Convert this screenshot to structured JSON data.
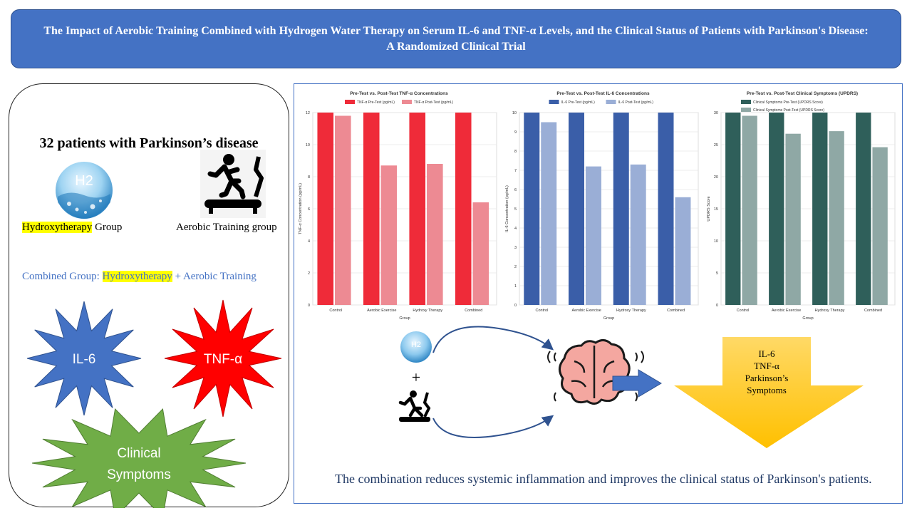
{
  "title": "The Impact of Aerobic Training Combined with Hydrogen Water Therapy on Serum IL-6 and TNF-α Levels, and the Clinical Status of Patients with Parkinson's Disease: A Randomized Clinical Trial",
  "left": {
    "patients": "32 patients with Parkinson’s disease",
    "h2_label": "H2",
    "hydroxy_group_hl": "Hydroxytherapy",
    "hydroxy_group_rest": " Group",
    "aerobic_group": "Aerobic Training group",
    "combined_prefix": "Combined Group: ",
    "combined_hl": "Hydroxytherapy",
    "combined_rest": " + Aerobic Training",
    "il6": "IL-6",
    "tnf": "TNF-α",
    "clinical_line1": "Clinical",
    "clinical_line2": "Symptoms",
    "colors": {
      "il6_star": "#4472c4",
      "tnf_star": "#ff0000",
      "clinical_star": "#70ad47"
    }
  },
  "flow": {
    "h2_label": "H2",
    "plus": "+",
    "outcome_lines": [
      "IL-6",
      "TNF-α",
      "Parkinson’s",
      "Symptoms"
    ],
    "arrow_color": "#4472c4",
    "outcome_color": "#ffd700"
  },
  "conclusion": "The combination reduces systemic inflammation and improves the clinical status of Parkinson's patients.",
  "chart_data": [
    {
      "type": "bar",
      "title": "Pre-Test vs. Post-Test TNF-α Concentrations",
      "categories": [
        "Control",
        "Aerobic Exercise",
        "Hydroxy Therapy",
        "Combined"
      ],
      "xlabel": "Group",
      "ylabel": "TNF-α Concentration (pg/mL)",
      "ylim": [
        0,
        12
      ],
      "yticks": [
        0,
        2,
        4,
        6,
        8,
        10,
        12
      ],
      "series": [
        {
          "name": "TNF-α Pre-Test (pg/mL)",
          "values": [
            12.0,
            12.0,
            12.0,
            12.0
          ],
          "color": "#ef2b39"
        },
        {
          "name": "TNF-α Post-Test (pg/mL)",
          "values": [
            11.8,
            8.7,
            8.8,
            6.4
          ],
          "color": "#ed8a93"
        }
      ],
      "legend": "top-center",
      "grid": true
    },
    {
      "type": "bar",
      "title": "Pre-Test vs. Post-Test IL-6 Concentrations",
      "categories": [
        "Control",
        "Aerobic Exercise",
        "Hydroxy Therapy",
        "Combined"
      ],
      "xlabel": "Group",
      "ylabel": "IL-6 Concentration (pg/mL)",
      "ylim": [
        0,
        10
      ],
      "yticks": [
        0,
        1,
        2,
        3,
        4,
        5,
        6,
        7,
        8,
        9,
        10
      ],
      "series": [
        {
          "name": "IL-6 Pre-Test (pg/mL)",
          "values": [
            10.0,
            10.0,
            10.0,
            10.0
          ],
          "color": "#3a5ea8"
        },
        {
          "name": "IL-6 Post-Test (pg/mL)",
          "values": [
            9.5,
            7.2,
            7.3,
            5.6
          ],
          "color": "#9aaed6"
        }
      ],
      "legend": "top-center",
      "grid": true
    },
    {
      "type": "bar",
      "title": "Pre-Test vs. Post-Test Clinical Symptoms (UPDRS)",
      "categories": [
        "Control",
        "Aerobic Exercise",
        "Hydroxy Therapy",
        "Combined"
      ],
      "xlabel": "Group",
      "ylabel": "UPDRS Score",
      "ylim": [
        0,
        30
      ],
      "yticks": [
        0,
        5,
        10,
        15,
        20,
        25,
        30
      ],
      "series": [
        {
          "name": "Clinical Symptoms Pre-Test (UPDRS Score)",
          "values": [
            30.0,
            30.0,
            30.0,
            30.0
          ],
          "color": "#2f5f5a"
        },
        {
          "name": "Clinical Symptoms Post-Test (UPDRS Score)",
          "values": [
            29.5,
            26.7,
            27.1,
            24.6
          ],
          "color": "#8fa8a5"
        }
      ],
      "legend": "top-center",
      "grid": true
    }
  ]
}
